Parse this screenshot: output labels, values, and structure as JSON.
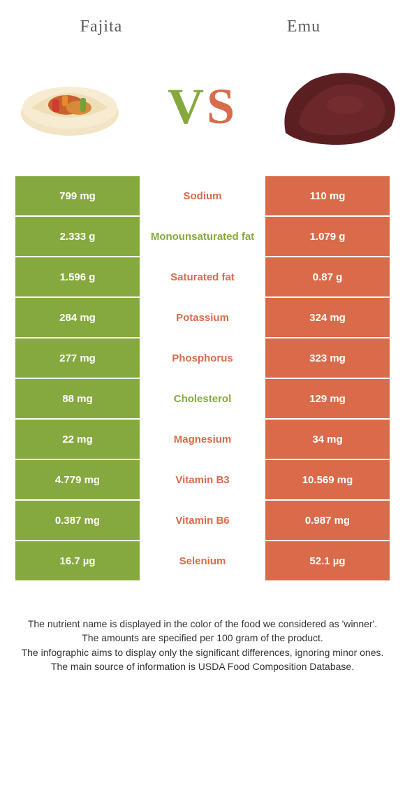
{
  "colors": {
    "left": "#86a93f",
    "right": "#d96b4a",
    "bg": "#ffffff",
    "text": "#333333",
    "header_text": "#5a5a5a"
  },
  "typography": {
    "header_font": "Georgia, serif",
    "header_size_pt": 18,
    "vs_size_pt": 54,
    "cell_size_pt": 11,
    "footer_size_pt": 10
  },
  "header": {
    "left": "Fajita",
    "right": "Emu"
  },
  "vs": {
    "v": "V",
    "s": "S"
  },
  "rows": [
    {
      "left": "799 mg",
      "label": "Sodium",
      "right": "110 mg",
      "winner": "right"
    },
    {
      "left": "2.333 g",
      "label": "Monounsaturated fat",
      "right": "1.079 g",
      "winner": "left"
    },
    {
      "left": "1.596 g",
      "label": "Saturated fat",
      "right": "0.87 g",
      "winner": "right"
    },
    {
      "left": "284 mg",
      "label": "Potassium",
      "right": "324 mg",
      "winner": "right"
    },
    {
      "left": "277 mg",
      "label": "Phosphorus",
      "right": "323 mg",
      "winner": "right"
    },
    {
      "left": "88 mg",
      "label": "Cholesterol",
      "right": "129 mg",
      "winner": "left"
    },
    {
      "left": "22 mg",
      "label": "Magnesium",
      "right": "34 mg",
      "winner": "right"
    },
    {
      "left": "4.779 mg",
      "label": "Vitamin B3",
      "right": "10.569 mg",
      "winner": "right"
    },
    {
      "left": "0.387 mg",
      "label": "Vitamin B6",
      "right": "0.987 mg",
      "winner": "right"
    },
    {
      "left": "16.7 µg",
      "label": "Selenium",
      "right": "52.1 µg",
      "winner": "right"
    }
  ],
  "footer": {
    "line1": "The nutrient name is displayed in the color of the food we considered as 'winner'.",
    "line2": "The amounts are specified per 100 gram of the product.",
    "line3": "The infographic aims to display only the significant differences, ignoring minor ones.",
    "line4": "The main source of information is USDA Food Composition Database."
  }
}
